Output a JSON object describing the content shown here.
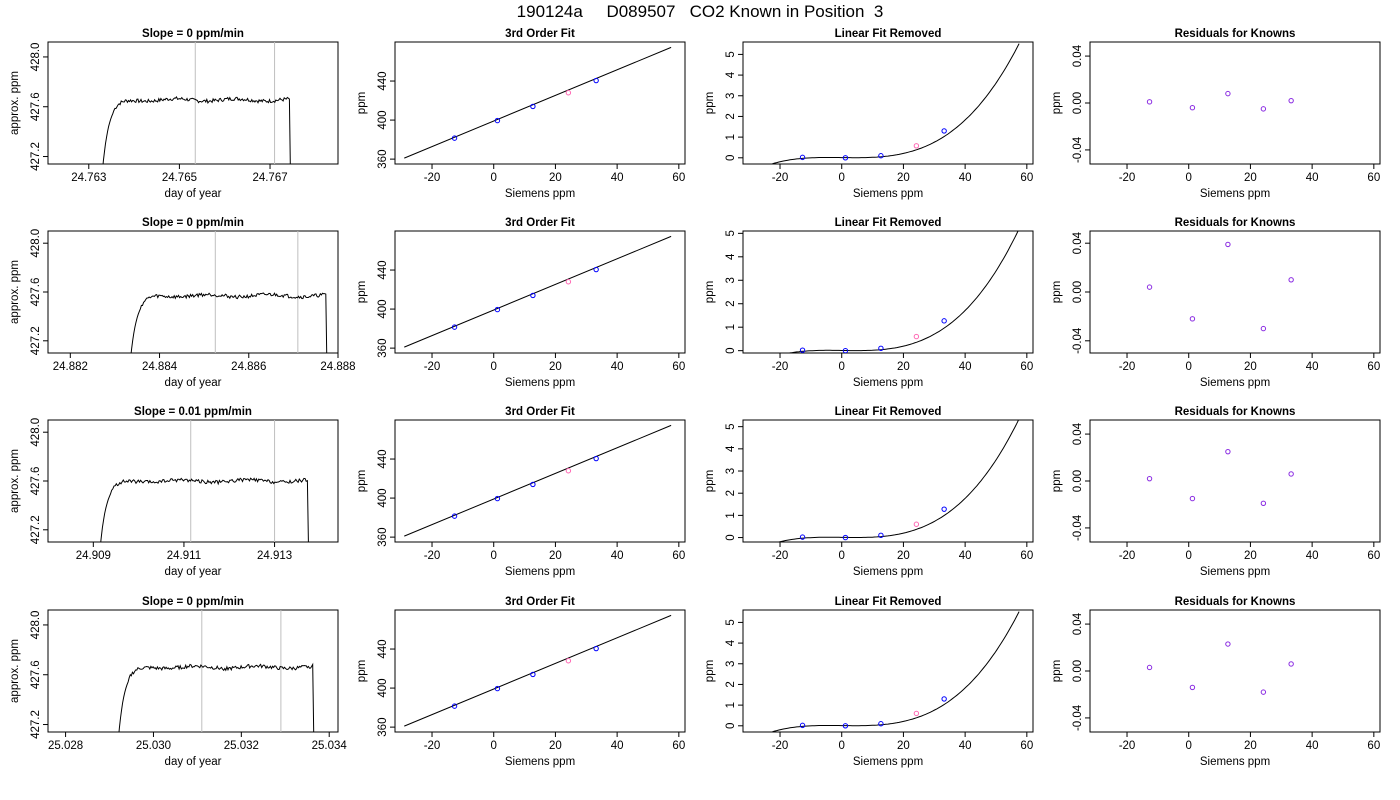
{
  "figure": {
    "title": "190124a     D089507   CO2 Known in Position  3"
  },
  "series_colors": {
    "trace": "#000000",
    "window_lines": "#bfbfbf",
    "known_points": "#0000ff",
    "unknown_point": "#ff69b4",
    "residual_points": "#8a2be2",
    "fit_line": "#000000"
  },
  "chart_data": [
    {
      "type": "line",
      "title": "Slope =  0  ppm/min",
      "xlabel": "day of year",
      "ylabel": "approx. ppm",
      "xlim": [
        24.7621,
        24.7685
      ],
      "ylim": [
        427.14,
        428.12
      ],
      "xticks": [
        24.763,
        24.765,
        24.767
      ],
      "xtick_labels": [
        "24.763",
        "24.765",
        "24.767"
      ],
      "yticks": [
        427.2,
        427.6,
        428.0
      ],
      "ytick_labels": [
        "427.2",
        "427.6",
        "428.0"
      ],
      "window_lines": [
        24.76535,
        24.7671
      ],
      "trace": {
        "x_start": 24.7633,
        "x_end": 24.76745,
        "base": 427.08,
        "plateau": 427.655,
        "rise_time": 0.0004
      },
      "grid": false
    },
    {
      "type": "scatter",
      "title": "3rd Order Fit",
      "xlabel": "Siemens ppm",
      "ylabel": "ppm",
      "xlim": [
        -32,
        62
      ],
      "ylim": [
        355,
        480
      ],
      "xticks": [
        -20,
        0,
        20,
        40,
        60
      ],
      "xtick_labels": [
        "-20",
        "0",
        "20",
        "40",
        "60"
      ],
      "yticks": [
        360,
        400,
        440
      ],
      "ytick_labels": [
        "360",
        "400",
        "440"
      ],
      "knowns": {
        "x": [
          -12.7,
          1.2,
          12.7,
          33.2
        ],
        "y": [
          381.5,
          399.5,
          414,
          440.5
        ]
      },
      "unknown": {
        "x": [
          24.2
        ],
        "y": [
          428
        ]
      },
      "fit_line": {
        "x": [
          -29,
          57.5
        ],
        "y": [
          361,
          474.5
        ]
      },
      "grid": false
    },
    {
      "type": "scatter",
      "title": "Linear Fit Removed",
      "xlabel": "Siemens ppm",
      "ylabel": "ppm",
      "xlim": [
        -32,
        62
      ],
      "ylim": [
        -0.3,
        5.6
      ],
      "xticks": [
        -20,
        0,
        20,
        40,
        60
      ],
      "xtick_labels": [
        "-20",
        "0",
        "20",
        "40",
        "60"
      ],
      "yticks": [
        0,
        1,
        2,
        3,
        4,
        5
      ],
      "ytick_labels": [
        "0",
        "1",
        "2",
        "3",
        "4",
        "5"
      ],
      "knowns": {
        "x": [
          -12.7,
          1.2,
          12.7,
          33.2
        ],
        "y": [
          0.02,
          0.0,
          0.1,
          1.3
        ]
      },
      "unknown": {
        "x": [
          24.2
        ],
        "y": [
          0.58
        ]
      },
      "fit_curve": {
        "x_range": [
          -29,
          57.5
        ],
        "coef": [
          0.0115,
          -0.00177,
          -5e-06,
          2.96e-05
        ]
      },
      "grid": false
    },
    {
      "type": "scatter",
      "title": "Residuals for Knowns",
      "xlabel": "Siemens ppm",
      "ylabel": "ppm",
      "xlim": [
        -32,
        62
      ],
      "ylim": [
        -0.052,
        0.052
      ],
      "xticks": [
        -20,
        0,
        20,
        40,
        60
      ],
      "xtick_labels": [
        "-20",
        "0",
        "20",
        "40",
        "60"
      ],
      "yticks": [
        -0.04,
        0.0,
        0.04
      ],
      "ytick_labels": [
        "-0.04",
        "0.00",
        "0.04"
      ],
      "residuals": {
        "x": [
          -12.7,
          1.2,
          12.7,
          24.2,
          33.2
        ],
        "y": [
          0.001,
          -0.004,
          0.008,
          -0.005,
          0.002
        ]
      },
      "grid": false
    },
    {
      "type": "line",
      "title": "Slope =  0  ppm/min",
      "xlabel": "day of year",
      "ylabel": "approx. ppm",
      "xlim": [
        24.8815,
        24.888
      ],
      "ylim": [
        427.1,
        428.1
      ],
      "xticks": [
        24.882,
        24.884,
        24.886,
        24.888
      ],
      "xtick_labels": [
        "24.882",
        "24.884",
        "24.886",
        "24.888"
      ],
      "yticks": [
        427.2,
        427.6,
        428.0
      ],
      "ytick_labels": [
        "427.2",
        "427.6",
        "428.0"
      ],
      "window_lines": [
        24.88525,
        24.8871
      ],
      "trace": {
        "x_start": 24.88335,
        "x_end": 24.88775,
        "base": 427.05,
        "plateau": 427.57,
        "rise_time": 0.0004
      },
      "grid": false
    },
    {
      "type": "scatter",
      "title": "3rd Order Fit",
      "xlabel": "Siemens ppm",
      "ylabel": "ppm",
      "xlim": [
        -32,
        62
      ],
      "ylim": [
        355,
        480
      ],
      "xticks": [
        -20,
        0,
        20,
        40,
        60
      ],
      "xtick_labels": [
        "-20",
        "0",
        "20",
        "40",
        "60"
      ],
      "yticks": [
        360,
        400,
        440
      ],
      "ytick_labels": [
        "360",
        "400",
        "440"
      ],
      "knowns": {
        "x": [
          -12.7,
          1.2,
          12.7,
          33.2
        ],
        "y": [
          381.5,
          399.5,
          414,
          440.5
        ]
      },
      "unknown": {
        "x": [
          24.2
        ],
        "y": [
          428
        ]
      },
      "fit_line": {
        "x": [
          -29,
          57.5
        ],
        "y": [
          361,
          474.5
        ]
      },
      "grid": false
    },
    {
      "type": "scatter",
      "title": "Linear Fit Removed",
      "xlabel": "Siemens ppm",
      "ylabel": "ppm",
      "xlim": [
        -32,
        62
      ],
      "ylim": [
        -0.1,
        5.1
      ],
      "xticks": [
        -20,
        0,
        20,
        40,
        60
      ],
      "xtick_labels": [
        "-20",
        "0",
        "20",
        "40",
        "60"
      ],
      "yticks": [
        0,
        1,
        2,
        3,
        4,
        5
      ],
      "ytick_labels": [
        "0",
        "1",
        "2",
        "3",
        "4",
        "5"
      ],
      "knowns": {
        "x": [
          -12.7,
          1.2,
          12.7,
          33.2
        ],
        "y": [
          0.02,
          0.0,
          0.1,
          1.27
        ]
      },
      "unknown": {
        "x": [
          24.2
        ],
        "y": [
          0.6
        ]
      },
      "fit_curve": {
        "x_range": [
          -29,
          57.5
        ],
        "coef": [
          0.008,
          -0.0018,
          -1e-05,
          2.8e-05
        ]
      },
      "grid": false
    },
    {
      "type": "scatter",
      "title": "Residuals for Knowns",
      "xlabel": "Siemens ppm",
      "ylabel": "ppm",
      "xlim": [
        -32,
        62
      ],
      "ylim": [
        -0.05,
        0.05
      ],
      "xticks": [
        -20,
        0,
        20,
        40,
        60
      ],
      "xtick_labels": [
        "-20",
        "0",
        "20",
        "40",
        "60"
      ],
      "yticks": [
        -0.04,
        0.0,
        0.04
      ],
      "ytick_labels": [
        "-0.04",
        "0.00",
        "0.04"
      ],
      "residuals": {
        "x": [
          -12.7,
          1.2,
          12.7,
          24.2,
          33.2
        ],
        "y": [
          0.004,
          -0.022,
          0.039,
          -0.03,
          0.01
        ]
      },
      "grid": false
    },
    {
      "type": "line",
      "title": "Slope =  0.01  ppm/min",
      "xlabel": "day of year",
      "ylabel": "approx. ppm",
      "xlim": [
        24.908,
        24.9144
      ],
      "ylim": [
        427.1,
        428.1
      ],
      "xticks": [
        24.909,
        24.911,
        24.913
      ],
      "xtick_labels": [
        "24.909",
        "24.911",
        "24.913"
      ],
      "yticks": [
        427.2,
        427.6,
        428.0
      ],
      "ytick_labels": [
        "427.2",
        "427.6",
        "428.0"
      ],
      "window_lines": [
        24.91115,
        24.913
      ],
      "trace": {
        "x_start": 24.90915,
        "x_end": 24.91375,
        "base": 427.05,
        "plateau": 427.6,
        "rise_time": 0.0004
      },
      "grid": false
    },
    {
      "type": "scatter",
      "title": "3rd Order Fit",
      "xlabel": "Siemens ppm",
      "ylabel": "ppm",
      "xlim": [
        -32,
        62
      ],
      "ylim": [
        355,
        480
      ],
      "xticks": [
        -20,
        0,
        20,
        40,
        60
      ],
      "xtick_labels": [
        "-20",
        "0",
        "20",
        "40",
        "60"
      ],
      "yticks": [
        360,
        400,
        440
      ],
      "ytick_labels": [
        "360",
        "400",
        "440"
      ],
      "knowns": {
        "x": [
          -12.7,
          1.2,
          12.7,
          33.2
        ],
        "y": [
          381.5,
          399.5,
          414,
          440.5
        ]
      },
      "unknown": {
        "x": [
          24.2
        ],
        "y": [
          428
        ]
      },
      "fit_line": {
        "x": [
          -29,
          57.5
        ],
        "y": [
          361,
          474.5
        ]
      },
      "grid": false
    },
    {
      "type": "scatter",
      "title": "Linear Fit Removed",
      "xlabel": "Siemens ppm",
      "ylabel": "ppm",
      "xlim": [
        -32,
        62
      ],
      "ylim": [
        -0.2,
        5.3
      ],
      "xticks": [
        -20,
        0,
        20,
        40,
        60
      ],
      "xtick_labels": [
        "-20",
        "0",
        "20",
        "40",
        "60"
      ],
      "yticks": [
        0,
        1,
        2,
        3,
        4,
        5
      ],
      "ytick_labels": [
        "0",
        "1",
        "2",
        "3",
        "4",
        "5"
      ],
      "knowns": {
        "x": [
          -12.7,
          1.2,
          12.7,
          33.2
        ],
        "y": [
          0.02,
          0.0,
          0.1,
          1.28
        ]
      },
      "unknown": {
        "x": [
          24.2
        ],
        "y": [
          0.6
        ]
      },
      "fit_curve": {
        "x_range": [
          -29,
          57.5
        ],
        "coef": [
          0.009,
          -0.0018,
          -8e-06,
          2.88e-05
        ]
      },
      "grid": false
    },
    {
      "type": "scatter",
      "title": "Residuals for Knowns",
      "xlabel": "Siemens ppm",
      "ylabel": "ppm",
      "xlim": [
        -32,
        62
      ],
      "ylim": [
        -0.052,
        0.052
      ],
      "xticks": [
        -20,
        0,
        20,
        40,
        60
      ],
      "xtick_labels": [
        "-20",
        "0",
        "20",
        "40",
        "60"
      ],
      "yticks": [
        -0.04,
        0.0,
        0.04
      ],
      "ytick_labels": [
        "-0.04",
        "0.00",
        "0.04"
      ],
      "residuals": {
        "x": [
          -12.7,
          1.2,
          12.7,
          24.2,
          33.2
        ],
        "y": [
          0.002,
          -0.015,
          0.025,
          -0.019,
          0.006
        ]
      },
      "grid": false
    },
    {
      "type": "line",
      "title": "Slope =  0  ppm/min",
      "xlabel": "day of year",
      "ylabel": "approx. ppm",
      "xlim": [
        25.0276,
        25.0342
      ],
      "ylim": [
        427.14,
        428.12
      ],
      "xticks": [
        25.028,
        25.03,
        25.032,
        25.034
      ],
      "xtick_labels": [
        "25.028",
        "25.030",
        "25.032",
        "25.034"
      ],
      "yticks": [
        427.2,
        427.6,
        428.0
      ],
      "ytick_labels": [
        "427.2",
        "427.6",
        "428.0"
      ],
      "window_lines": [
        25.0311,
        25.0329
      ],
      "trace": {
        "x_start": 25.0292,
        "x_end": 25.03365,
        "base": 427.08,
        "plateau": 427.66,
        "rise_time": 0.0004
      },
      "grid": false
    },
    {
      "type": "scatter",
      "title": "3rd Order Fit",
      "xlabel": "Siemens ppm",
      "ylabel": "ppm",
      "xlim": [
        -32,
        62
      ],
      "ylim": [
        355,
        480
      ],
      "xticks": [
        -20,
        0,
        20,
        40,
        60
      ],
      "xtick_labels": [
        "-20",
        "0",
        "20",
        "40",
        "60"
      ],
      "yticks": [
        360,
        400,
        440
      ],
      "ytick_labels": [
        "360",
        "400",
        "440"
      ],
      "knowns": {
        "x": [
          -12.7,
          1.2,
          12.7,
          33.2
        ],
        "y": [
          381.5,
          399.5,
          414,
          440.5
        ]
      },
      "unknown": {
        "x": [
          24.2
        ],
        "y": [
          428
        ]
      },
      "fit_line": {
        "x": [
          -29,
          57.5
        ],
        "y": [
          361,
          474.5
        ]
      },
      "grid": false
    },
    {
      "type": "scatter",
      "title": "Linear Fit Removed",
      "xlabel": "Siemens ppm",
      "ylabel": "ppm",
      "xlim": [
        -32,
        62
      ],
      "ylim": [
        -0.3,
        5.6
      ],
      "xticks": [
        -20,
        0,
        20,
        40,
        60
      ],
      "xtick_labels": [
        "-20",
        "0",
        "20",
        "40",
        "60"
      ],
      "yticks": [
        0,
        1,
        2,
        3,
        4,
        5
      ],
      "ytick_labels": [
        "0",
        "1",
        "2",
        "3",
        "4",
        "5"
      ],
      "knowns": {
        "x": [
          -12.7,
          1.2,
          12.7,
          33.2
        ],
        "y": [
          0.02,
          0.0,
          0.1,
          1.3
        ]
      },
      "unknown": {
        "x": [
          24.2
        ],
        "y": [
          0.6
        ]
      },
      "fit_curve": {
        "x_range": [
          -29,
          57.5
        ],
        "coef": [
          0.0115,
          -0.00177,
          -5e-06,
          2.96e-05
        ]
      },
      "grid": false
    },
    {
      "type": "scatter",
      "title": "Residuals for Knowns",
      "xlabel": "Siemens ppm",
      "ylabel": "ppm",
      "xlim": [
        -32,
        62
      ],
      "ylim": [
        -0.052,
        0.052
      ],
      "xticks": [
        -20,
        0,
        20,
        40,
        60
      ],
      "xtick_labels": [
        "-20",
        "0",
        "20",
        "40",
        "60"
      ],
      "yticks": [
        -0.04,
        0.0,
        0.04
      ],
      "ytick_labels": [
        "-0.04",
        "0.00",
        "0.04"
      ],
      "residuals": {
        "x": [
          -12.7,
          1.2,
          12.7,
          24.2,
          33.2
        ],
        "y": [
          0.003,
          -0.014,
          0.023,
          -0.018,
          0.006
        ]
      },
      "grid": false
    }
  ]
}
